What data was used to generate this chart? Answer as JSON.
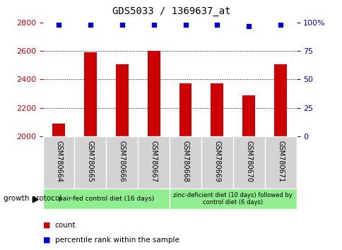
{
  "title": "GDS5033 / 1369637_at",
  "categories": [
    "GSM780664",
    "GSM780665",
    "GSM780666",
    "GSM780667",
    "GSM780668",
    "GSM780669",
    "GSM780670",
    "GSM780671"
  ],
  "bar_values": [
    2090,
    2590,
    2505,
    2600,
    2370,
    2370,
    2290,
    2505
  ],
  "percentile_values": [
    98,
    98,
    98,
    98,
    98,
    98,
    97,
    98
  ],
  "ylim_left": [
    2000,
    2800
  ],
  "ylim_right": [
    0,
    100
  ],
  "yticks_left": [
    2000,
    2200,
    2400,
    2600,
    2800
  ],
  "yticks_right": [
    0,
    25,
    50,
    75,
    100
  ],
  "bar_color": "#cc0000",
  "dot_color": "#0000cc",
  "grid_color": "#000000",
  "title_color": "#000000",
  "left_tick_color": "#cc0000",
  "right_tick_color": "#0000cc",
  "group1_label": "pair-fed control diet (16 days)",
  "group2_label": "zinc-deficient diet (10 days) followed by\ncontrol diet (6 days)",
  "group1_indices": [
    0,
    1,
    2,
    3
  ],
  "group2_indices": [
    4,
    5,
    6,
    7
  ],
  "group_color": "#90ee90",
  "xlabel_bg_color": "#d3d3d3",
  "growth_protocol_label": "growth protocol",
  "legend_count_label": "count",
  "legend_percentile_label": "percentile rank within the sample",
  "bar_width": 0.4,
  "dot_size": 5,
  "grid_yticks": [
    2200,
    2400,
    2600
  ],
  "xlim": [
    -0.5,
    7.5
  ]
}
